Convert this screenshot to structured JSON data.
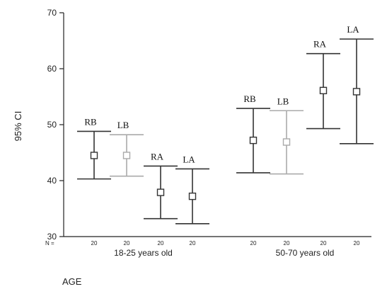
{
  "chart_data": {
    "type": "errorbar",
    "title": "",
    "xlabel": "AGE",
    "ylabel": "95% CI",
    "ylim": [
      30,
      70
    ],
    "yticks": [
      30,
      40,
      50,
      60,
      70
    ],
    "grid": false,
    "n_prefix": "N =",
    "colors": {
      "dark": "#333333",
      "light": "#aaaaaa"
    },
    "groups": [
      {
        "label": "18-25 years old",
        "items": [
          {
            "label": "RB",
            "mean": 44.5,
            "lower": 40.3,
            "upper": 48.8,
            "n": "20",
            "color": "dark"
          },
          {
            "label": "LB",
            "mean": 44.5,
            "lower": 40.8,
            "upper": 48.2,
            "n": "20",
            "color": "light"
          },
          {
            "label": "RA",
            "mean": 37.9,
            "lower": 33.2,
            "upper": 42.6,
            "n": "20",
            "color": "dark"
          },
          {
            "label": "LA",
            "mean": 37.2,
            "lower": 32.3,
            "upper": 42.1,
            "n": "20",
            "color": "dark"
          }
        ]
      },
      {
        "label": "50-70 years old",
        "items": [
          {
            "label": "RB",
            "mean": 47.2,
            "lower": 41.4,
            "upper": 52.9,
            "n": "20",
            "color": "dark"
          },
          {
            "label": "LB",
            "mean": 46.9,
            "lower": 41.2,
            "upper": 52.5,
            "n": "20",
            "color": "light"
          },
          {
            "label": "RA",
            "mean": 56.1,
            "lower": 49.3,
            "upper": 62.7,
            "n": "20",
            "color": "dark"
          },
          {
            "label": "LA",
            "mean": 55.9,
            "lower": 46.6,
            "upper": 65.3,
            "n": "20",
            "color": "dark"
          }
        ]
      }
    ]
  }
}
